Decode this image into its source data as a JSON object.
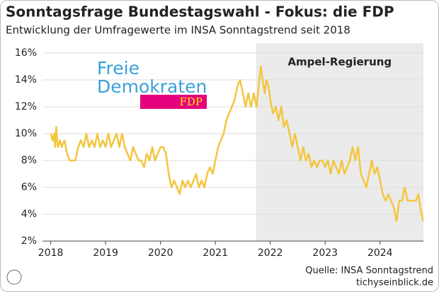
{
  "chart_data": {
    "type": "line",
    "title": "Sonntagsfrage Bundestagswahl - Fokus: die FDP",
    "subtitle": "Entwicklung der Umfragewerte im INSA Sonntagstrend seit 2018",
    "color": "#f3c63f",
    "grid": true,
    "xlim": [
      2017.85,
      2024.79
    ],
    "xticks": [
      2018,
      2019,
      2020,
      2021,
      2022,
      2023,
      2024
    ],
    "ylim": [
      2,
      16
    ],
    "yticks": [
      {
        "value": 2,
        "label": "2%"
      },
      {
        "value": 4,
        "label": "4%"
      },
      {
        "value": 6,
        "label": "6%"
      },
      {
        "value": 8,
        "label": "8%"
      },
      {
        "value": 10,
        "label": "10%"
      },
      {
        "value": 12,
        "label": "12%"
      },
      {
        "value": 14,
        "label": "14%"
      },
      {
        "value": 16,
        "label": "16%"
      }
    ],
    "shade": {
      "label": "Ampel-Regierung",
      "start": 2021.74
    },
    "logo": {
      "line1": "Freie",
      "line2": "Demokraten",
      "badge": "FDP"
    },
    "source": "Quelle: INSA Sonntagstrend",
    "website": "tichyseinblick.de",
    "x": [
      2018.0,
      2018.03,
      2018.06,
      2018.08,
      2018.1,
      2018.13,
      2018.17,
      2018.2,
      2018.25,
      2018.3,
      2018.35,
      2018.45,
      2018.5,
      2018.55,
      2018.6,
      2018.65,
      2018.7,
      2018.75,
      2018.8,
      2018.85,
      2018.9,
      2018.95,
      2019.0,
      2019.05,
      2019.1,
      2019.15,
      2019.2,
      2019.25,
      2019.3,
      2019.35,
      2019.4,
      2019.45,
      2019.5,
      2019.55,
      2019.6,
      2019.65,
      2019.7,
      2019.75,
      2019.8,
      2019.85,
      2019.9,
      2019.95,
      2020.0,
      2020.05,
      2020.1,
      2020.15,
      2020.2,
      2020.25,
      2020.3,
      2020.35,
      2020.4,
      2020.45,
      2020.5,
      2020.55,
      2020.6,
      2020.65,
      2020.7,
      2020.75,
      2020.8,
      2020.85,
      2020.9,
      2020.95,
      2021.0,
      2021.05,
      2021.1,
      2021.15,
      2021.2,
      2021.25,
      2021.3,
      2021.35,
      2021.4,
      2021.45,
      2021.5,
      2021.55,
      2021.6,
      2021.65,
      2021.7,
      2021.75,
      2021.8,
      2021.83,
      2021.86,
      2021.9,
      2021.93,
      2021.97,
      2022.0,
      2022.05,
      2022.1,
      2022.15,
      2022.2,
      2022.25,
      2022.3,
      2022.35,
      2022.4,
      2022.45,
      2022.5,
      2022.55,
      2022.6,
      2022.65,
      2022.7,
      2022.75,
      2022.8,
      2022.85,
      2022.9,
      2022.95,
      2023.0,
      2023.05,
      2023.1,
      2023.15,
      2023.2,
      2023.25,
      2023.3,
      2023.35,
      2023.4,
      2023.45,
      2023.5,
      2023.55,
      2023.6,
      2023.65,
      2023.7,
      2023.75,
      2023.8,
      2023.85,
      2023.9,
      2023.95,
      2024.0,
      2024.05,
      2024.1,
      2024.15,
      2024.2,
      2024.25,
      2024.3,
      2024.35,
      2024.4,
      2024.45,
      2024.5,
      2024.55,
      2024.6,
      2024.65,
      2024.7,
      2024.73,
      2024.76,
      2024.78
    ],
    "values": [
      10,
      9.5,
      10,
      9,
      10.5,
      9,
      9.5,
      9,
      9.5,
      8.5,
      8,
      8,
      9,
      9.5,
      9,
      10,
      9,
      9.5,
      9,
      10,
      9,
      9.5,
      9,
      10,
      9,
      9.5,
      10,
      9,
      10,
      9,
      8.5,
      8,
      9,
      8.5,
      8,
      8,
      7.5,
      8.5,
      8,
      9,
      8,
      8.5,
      9,
      9,
      8.5,
      7,
      6,
      6.5,
      6,
      5.5,
      6.5,
      6,
      6.5,
      6,
      6.5,
      7,
      6,
      6.5,
      6,
      7,
      7.5,
      7,
      8,
      9,
      9.5,
      10,
      11,
      11.5,
      12,
      12.5,
      13.5,
      14,
      13,
      12,
      13,
      12,
      13,
      12,
      14,
      15,
      14,
      13,
      14,
      13.5,
      12.5,
      11.5,
      12,
      11,
      12,
      10.5,
      11,
      10,
      9,
      10,
      9,
      8,
      9,
      8,
      8.5,
      7.5,
      8,
      7.5,
      8,
      8,
      7.5,
      8,
      7,
      8,
      7.5,
      7,
      8,
      7,
      7.5,
      8,
      9,
      8,
      9,
      7,
      6.5,
      6,
      7,
      8,
      7,
      7.5,
      6.5,
      5.5,
      5,
      5.5,
      5,
      4.5,
      3.5,
      5,
      5,
      6,
      5,
      5,
      5,
      5,
      5.5,
      4.5,
      4,
      3.5
    ]
  }
}
